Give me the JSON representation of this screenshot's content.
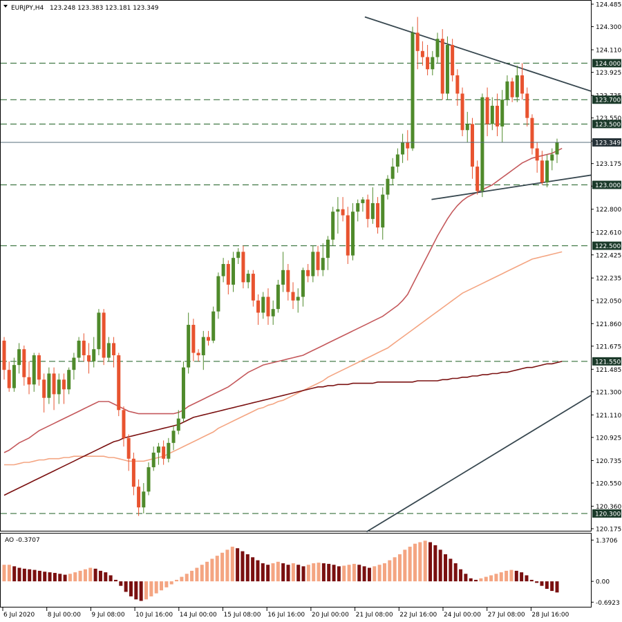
{
  "chart_data": {
    "type": "candlestick",
    "symbol": "EURJPY,H4",
    "ohlc_label": "123.248 123.383 123.181 123.349",
    "current_price": "123.349",
    "price_axis": {
      "ylim": [
        120.175,
        124.485
      ],
      "ticks": [
        "124.485",
        "124.300",
        "124.110",
        "123.925",
        "123.735",
        "123.550",
        "123.360",
        "123.175",
        "122.990",
        "122.800",
        "122.610",
        "122.425",
        "122.235",
        "122.050",
        "121.860",
        "121.675",
        "121.485",
        "121.300",
        "121.110",
        "120.925",
        "120.735",
        "120.550",
        "120.360",
        "120.175"
      ]
    },
    "levels": [
      {
        "value": 124.0,
        "label": "124.000"
      },
      {
        "value": 123.7,
        "label": "123.700"
      },
      {
        "value": 123.5,
        "label": "123.500"
      },
      {
        "value": 123.0,
        "label": "123.000"
      },
      {
        "value": 122.5,
        "label": "122.500"
      },
      {
        "value": 121.55,
        "label": "121.550"
      },
      {
        "value": 120.3,
        "label": "120.300"
      }
    ],
    "x_labels": [
      "6 Jul 2020",
      "8 Jul 00:00",
      "9 Jul 08:00",
      "10 Jul 16:00",
      "14 Jul 00:00",
      "15 Jul 08:00",
      "16 Jul 16:00",
      "20 Jul 00:00",
      "21 Jul 08:00",
      "22 Jul 16:00",
      "24 Jul 00:00",
      "27 Jul 08:00",
      "28 Jul 16:00"
    ],
    "candles": [
      [
        121.72,
        121.48,
        121.4,
        121.75
      ],
      [
        121.48,
        121.33,
        121.3,
        121.55
      ],
      [
        121.33,
        121.52,
        121.3,
        121.58
      ],
      [
        121.52,
        121.65,
        121.45,
        121.7
      ],
      [
        121.65,
        121.42,
        121.35,
        121.68
      ],
      [
        121.42,
        121.36,
        121.28,
        121.55
      ],
      [
        121.36,
        121.6,
        121.3,
        121.62
      ],
      [
        121.6,
        121.4,
        121.35,
        121.62
      ],
      [
        121.4,
        121.25,
        121.13,
        121.45
      ],
      [
        121.25,
        121.45,
        121.2,
        121.5
      ],
      [
        121.45,
        121.28,
        121.15,
        121.5
      ],
      [
        121.28,
        121.4,
        121.2,
        121.45
      ],
      [
        121.4,
        121.32,
        121.2,
        121.45
      ],
      [
        121.32,
        121.48,
        121.28,
        121.5
      ],
      [
        121.48,
        121.58,
        121.4,
        121.62
      ],
      [
        121.58,
        121.72,
        121.55,
        121.75
      ],
      [
        121.72,
        121.6,
        121.55,
        121.78
      ],
      [
        121.6,
        121.55,
        121.45,
        121.7
      ],
      [
        121.55,
        121.65,
        121.5,
        121.75
      ],
      [
        121.65,
        121.95,
        121.6,
        121.98
      ],
      [
        121.95,
        121.58,
        121.52,
        121.98
      ],
      [
        121.58,
        121.7,
        121.55,
        121.75
      ],
      [
        121.7,
        121.6,
        121.5,
        121.75
      ],
      [
        121.6,
        121.15,
        121.1,
        121.62
      ],
      [
        121.15,
        120.92,
        120.85,
        121.18
      ],
      [
        120.92,
        120.75,
        120.65,
        120.95
      ],
      [
        120.75,
        120.52,
        120.45,
        120.8
      ],
      [
        120.52,
        120.35,
        120.28,
        120.58
      ],
      [
        120.35,
        120.48,
        120.3,
        120.55
      ],
      [
        120.48,
        120.68,
        120.45,
        120.72
      ],
      [
        120.68,
        120.8,
        120.65,
        120.85
      ],
      [
        120.8,
        120.85,
        120.7,
        120.88
      ],
      [
        120.85,
        120.75,
        120.7,
        120.9
      ],
      [
        120.75,
        120.88,
        120.72,
        120.92
      ],
      [
        120.88,
        120.98,
        120.82,
        121.02
      ],
      [
        120.98,
        121.08,
        120.95,
        121.15
      ],
      [
        121.08,
        121.5,
        121.05,
        121.55
      ],
      [
        121.5,
        121.85,
        121.45,
        121.95
      ],
      [
        121.85,
        121.62,
        121.55,
        121.9
      ],
      [
        121.62,
        121.6,
        121.55,
        121.65
      ],
      [
        121.6,
        121.75,
        121.48,
        121.8
      ],
      [
        121.75,
        121.72,
        121.68,
        121.8
      ],
      [
        121.72,
        121.96,
        121.7,
        122.0
      ],
      [
        121.96,
        122.25,
        121.9,
        122.28
      ],
      [
        122.25,
        122.35,
        122.2,
        122.4
      ],
      [
        122.35,
        122.18,
        122.1,
        122.38
      ],
      [
        122.18,
        122.4,
        122.12,
        122.45
      ],
      [
        122.4,
        122.45,
        122.35,
        122.48
      ],
      [
        122.45,
        122.2,
        122.15,
        122.5
      ],
      [
        122.2,
        122.27,
        122.15,
        122.3
      ],
      [
        122.27,
        122.05,
        122.0,
        122.3
      ],
      [
        122.05,
        121.95,
        121.85,
        122.1
      ],
      [
        121.95,
        122.08,
        121.9,
        122.12
      ],
      [
        122.08,
        121.92,
        121.85,
        122.15
      ],
      [
        121.92,
        121.98,
        121.85,
        122.05
      ],
      [
        121.98,
        122.18,
        121.95,
        122.22
      ],
      [
        122.18,
        122.3,
        122.12,
        122.45
      ],
      [
        122.3,
        122.12,
        122.05,
        122.35
      ],
      [
        122.12,
        122.05,
        121.98,
        122.2
      ],
      [
        122.05,
        122.08,
        121.95,
        122.15
      ],
      [
        122.08,
        122.3,
        122.0,
        122.32
      ],
      [
        122.3,
        122.25,
        122.2,
        122.35
      ],
      [
        122.25,
        122.45,
        122.2,
        122.5
      ],
      [
        122.45,
        122.3,
        122.25,
        122.5
      ],
      [
        122.3,
        122.4,
        122.25,
        122.52
      ],
      [
        122.4,
        122.55,
        122.3,
        122.58
      ],
      [
        122.55,
        122.78,
        122.5,
        122.82
      ],
      [
        122.78,
        122.8,
        122.6,
        122.9
      ],
      [
        122.8,
        122.75,
        122.7,
        122.9
      ],
      [
        122.75,
        122.42,
        122.35,
        122.82
      ],
      [
        122.42,
        122.78,
        122.38,
        122.85
      ],
      [
        122.78,
        122.85,
        122.7,
        122.88
      ],
      [
        122.85,
        122.88,
        122.78,
        122.9
      ],
      [
        122.88,
        122.72,
        122.65,
        122.92
      ],
      [
        122.72,
        122.85,
        122.68,
        122.98
      ],
      [
        122.85,
        122.65,
        122.6,
        122.9
      ],
      [
        122.65,
        122.92,
        122.55,
        122.98
      ],
      [
        122.92,
        123.05,
        122.88,
        123.08
      ],
      [
        123.05,
        123.15,
        123.0,
        123.22
      ],
      [
        123.15,
        123.25,
        123.1,
        123.3
      ],
      [
        123.25,
        123.35,
        123.18,
        123.42
      ],
      [
        123.35,
        123.3,
        123.2,
        123.45
      ],
      [
        123.3,
        124.25,
        123.28,
        124.3
      ],
      [
        124.25,
        124.1,
        123.95,
        124.38
      ],
      [
        124.1,
        124.05,
        123.98,
        124.18
      ],
      [
        124.05,
        123.95,
        123.9,
        124.15
      ],
      [
        123.95,
        124.05,
        123.9,
        124.1
      ],
      [
        124.05,
        124.2,
        124.0,
        124.25
      ],
      [
        124.2,
        123.75,
        123.7,
        124.28
      ],
      [
        123.75,
        124.15,
        123.7,
        124.22
      ],
      [
        124.15,
        123.9,
        123.85,
        124.2
      ],
      [
        123.9,
        123.75,
        123.65,
        123.95
      ],
      [
        123.75,
        123.45,
        123.4,
        123.8
      ],
      [
        123.45,
        123.5,
        123.35,
        123.6
      ],
      [
        123.5,
        123.15,
        123.05,
        123.55
      ],
      [
        123.15,
        122.95,
        122.92,
        123.2
      ],
      [
        122.95,
        123.72,
        122.9,
        123.75
      ],
      [
        123.72,
        123.5,
        123.4,
        123.8
      ],
      [
        123.5,
        123.65,
        123.45,
        123.72
      ],
      [
        123.65,
        123.48,
        123.4,
        123.75
      ],
      [
        123.48,
        123.7,
        123.35,
        123.78
      ],
      [
        123.7,
        123.85,
        123.65,
        123.9
      ],
      [
        123.85,
        123.72,
        123.68,
        123.88
      ],
      [
        123.72,
        123.9,
        123.68,
        123.98
      ],
      [
        123.9,
        123.75,
        123.7,
        124.0
      ],
      [
        123.75,
        123.55,
        123.48,
        123.8
      ],
      [
        123.55,
        123.3,
        123.25,
        123.58
      ],
      [
        123.3,
        123.2,
        123.1,
        123.35
      ],
      [
        123.2,
        123.02,
        123.0,
        123.28
      ],
      [
        123.02,
        123.2,
        122.98,
        123.25
      ],
      [
        123.2,
        123.25,
        123.12,
        123.3
      ],
      [
        123.25,
        123.35,
        123.18,
        123.38
      ]
    ],
    "moving_averages": [
      {
        "color": "#c4585b",
        "values": [
          120.8,
          120.82,
          120.85,
          120.88,
          120.9,
          120.92,
          120.95,
          120.98,
          121.0,
          121.02,
          121.04,
          121.06,
          121.08,
          121.1,
          121.12,
          121.14,
          121.16,
          121.18,
          121.2,
          121.22,
          121.22,
          121.22,
          121.2,
          121.18,
          121.16,
          121.14,
          121.13,
          121.12,
          121.12,
          121.12,
          121.12,
          121.12,
          121.12,
          121.12,
          121.12,
          121.13,
          121.15,
          121.18,
          121.2,
          121.22,
          121.24,
          121.26,
          121.28,
          121.3,
          121.32,
          121.34,
          121.37,
          121.4,
          121.43,
          121.46,
          121.48,
          121.5,
          121.52,
          121.53,
          121.54,
          121.55,
          121.56,
          121.57,
          121.58,
          121.59,
          121.6,
          121.62,
          121.64,
          121.66,
          121.68,
          121.7,
          121.72,
          121.74,
          121.76,
          121.78,
          121.8,
          121.82,
          121.84,
          121.86,
          121.88,
          121.9,
          121.92,
          121.95,
          121.98,
          122.01,
          122.05,
          122.1,
          122.18,
          122.26,
          122.34,
          122.42,
          122.5,
          122.58,
          122.65,
          122.72,
          122.78,
          122.83,
          122.87,
          122.9,
          122.92,
          122.94,
          122.96,
          122.98,
          123.0,
          123.03,
          123.06,
          123.09,
          123.12,
          123.15,
          123.18,
          123.2,
          123.22,
          123.23,
          123.24,
          123.25,
          123.26,
          123.28,
          123.3
        ]
      },
      {
        "color": "#f4a582",
        "values": [
          120.7,
          120.7,
          120.7,
          120.71,
          120.72,
          120.72,
          120.73,
          120.74,
          120.74,
          120.75,
          120.75,
          120.75,
          120.76,
          120.76,
          120.77,
          120.77,
          120.77,
          120.77,
          120.77,
          120.77,
          120.77,
          120.76,
          120.76,
          120.75,
          120.74,
          120.73,
          120.73,
          120.73,
          120.73,
          120.74,
          120.75,
          120.76,
          120.77,
          120.79,
          120.81,
          120.83,
          120.85,
          120.87,
          120.89,
          120.91,
          120.93,
          120.95,
          120.97,
          121.0,
          121.02,
          121.04,
          121.06,
          121.08,
          121.1,
          121.12,
          121.14,
          121.16,
          121.17,
          121.19,
          121.2,
          121.22,
          121.23,
          121.25,
          121.27,
          121.29,
          121.31,
          121.33,
          121.35,
          121.37,
          121.39,
          121.42,
          121.44,
          121.46,
          121.48,
          121.5,
          121.52,
          121.54,
          121.56,
          121.58,
          121.6,
          121.62,
          121.64,
          121.66,
          121.69,
          121.72,
          121.75,
          121.78,
          121.81,
          121.84,
          121.87,
          121.9,
          121.93,
          121.96,
          121.99,
          122.02,
          122.05,
          122.08,
          122.11,
          122.13,
          122.15,
          122.17,
          122.19,
          122.21,
          122.23,
          122.25,
          122.27,
          122.29,
          122.31,
          122.33,
          122.35,
          122.37,
          122.39,
          122.4,
          122.41,
          122.42,
          122.43,
          122.44,
          122.45
        ]
      },
      {
        "color": "#7a1010",
        "values": [
          120.45,
          120.47,
          120.49,
          120.51,
          120.53,
          120.55,
          120.57,
          120.59,
          120.61,
          120.63,
          120.65,
          120.67,
          120.69,
          120.71,
          120.73,
          120.75,
          120.77,
          120.79,
          120.81,
          120.83,
          120.85,
          120.87,
          120.89,
          120.9,
          120.92,
          120.93,
          120.94,
          120.95,
          120.96,
          120.97,
          120.98,
          120.99,
          121.0,
          121.01,
          121.02,
          121.03,
          121.05,
          121.07,
          121.09,
          121.1,
          121.11,
          121.12,
          121.13,
          121.14,
          121.15,
          121.16,
          121.17,
          121.18,
          121.19,
          121.2,
          121.21,
          121.22,
          121.23,
          121.24,
          121.25,
          121.26,
          121.27,
          121.28,
          121.29,
          121.3,
          121.31,
          121.32,
          121.33,
          121.34,
          121.34,
          121.35,
          121.35,
          121.36,
          121.36,
          121.36,
          121.37,
          121.37,
          121.37,
          121.37,
          121.37,
          121.38,
          121.38,
          121.38,
          121.38,
          121.38,
          121.38,
          121.38,
          121.38,
          121.39,
          121.39,
          121.39,
          121.39,
          121.39,
          121.4,
          121.4,
          121.41,
          121.41,
          121.42,
          121.42,
          121.43,
          121.43,
          121.44,
          121.44,
          121.45,
          121.45,
          121.46,
          121.46,
          121.47,
          121.48,
          121.49,
          121.5,
          121.5,
          121.51,
          121.52,
          121.53,
          121.53,
          121.54,
          121.55
        ]
      }
    ],
    "trendlines": [
      {
        "from": [
          0.62,
          120.15
        ],
        "to": [
          1.0,
          121.27
        ]
      },
      {
        "from": [
          0.617,
          124.38
        ],
        "to": [
          1.0,
          123.77
        ]
      },
      {
        "from": [
          0.73,
          122.88
        ],
        "to": [
          1.0,
          123.08
        ]
      }
    ],
    "ao": {
      "label": "AO -0.3707",
      "ticks": [
        "1.3706",
        "0.00",
        "-0.6923"
      ],
      "ylim": [
        -0.8,
        1.45
      ],
      "values": [
        0.55,
        0.55,
        0.5,
        0.45,
        0.42,
        0.4,
        0.38,
        0.35,
        0.32,
        0.3,
        0.28,
        0.25,
        0.22,
        0.25,
        0.3,
        0.35,
        0.4,
        0.45,
        0.42,
        0.35,
        0.3,
        0.2,
        0.05,
        -0.15,
        -0.35,
        -0.5,
        -0.6,
        -0.65,
        -0.6,
        -0.5,
        -0.4,
        -0.3,
        -0.2,
        -0.1,
        0.05,
        0.15,
        0.25,
        0.35,
        0.45,
        0.55,
        0.65,
        0.75,
        0.85,
        0.95,
        1.05,
        1.15,
        1.1,
        1.0,
        0.9,
        0.8,
        0.7,
        0.6,
        0.55,
        0.6,
        0.65,
        0.6,
        0.55,
        0.6,
        0.55,
        0.5,
        0.55,
        0.6,
        0.62,
        0.6,
        0.58,
        0.55,
        0.5,
        0.52,
        0.55,
        0.58,
        0.55,
        0.5,
        0.45,
        0.5,
        0.55,
        0.6,
        0.7,
        0.8,
        0.9,
        1.05,
        1.15,
        1.25,
        1.3,
        1.35,
        1.3,
        1.2,
        1.05,
        0.9,
        0.75,
        0.6,
        0.4,
        0.25,
        0.1,
        0.05,
        0.1,
        0.15,
        0.2,
        0.25,
        0.3,
        0.35,
        0.38,
        0.35,
        0.3,
        0.2,
        0.05,
        -0.05,
        -0.15,
        -0.25,
        -0.32,
        -0.37
      ]
    }
  }
}
